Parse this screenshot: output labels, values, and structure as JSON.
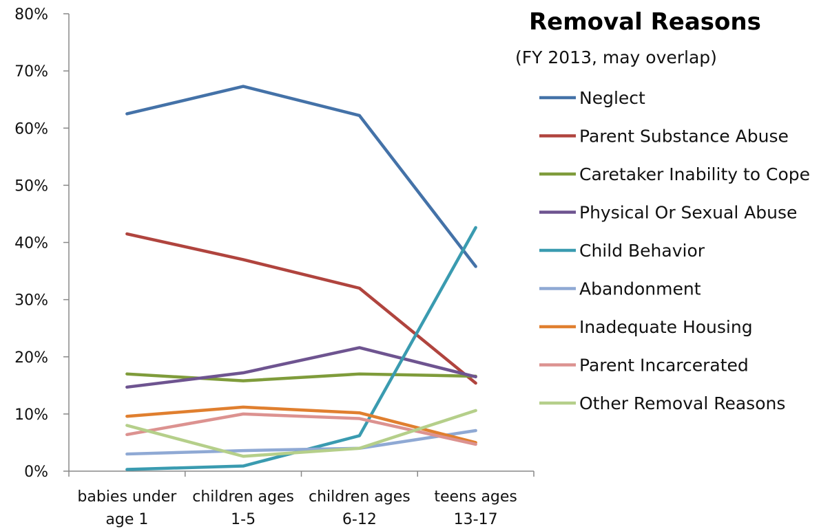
{
  "chart_data": {
    "type": "line",
    "title": "Removal Reasons",
    "subtitle": "(FY 2013, may overlap)",
    "xlabel": "",
    "ylabel": "",
    "ylim": [
      0,
      80
    ],
    "y_ticks": [
      "0%",
      "10%",
      "20%",
      "30%",
      "40%",
      "50%",
      "60%",
      "70%",
      "80%"
    ],
    "categories": [
      [
        "babies under",
        "age 1"
      ],
      [
        "children ages",
        "1-5"
      ],
      [
        "children ages",
        "6-12"
      ],
      [
        "teens ages",
        "13-17"
      ]
    ],
    "grid": false,
    "legend_position": "right",
    "series": [
      {
        "name": "Neglect",
        "color": "#4472a8",
        "values": [
          62.5,
          67.3,
          62.2,
          35.8
        ]
      },
      {
        "name": "Parent Substance Abuse",
        "color": "#b0443e",
        "values": [
          41.5,
          37.0,
          32.0,
          15.4
        ]
      },
      {
        "name": "Caretaker Inability to Cope",
        "color": "#7f9c3b",
        "values": [
          17.0,
          15.8,
          17.0,
          16.6
        ]
      },
      {
        "name": "Physical Or Sexual Abuse",
        "color": "#6e5490",
        "values": [
          14.7,
          17.2,
          21.6,
          16.5
        ]
      },
      {
        "name": "Child Behavior",
        "color": "#3a9bb0",
        "values": [
          0.3,
          0.9,
          6.2,
          42.6
        ]
      },
      {
        "name": "Abandonment",
        "color": "#8fa9d4",
        "values": [
          3.0,
          3.6,
          4.0,
          7.1
        ]
      },
      {
        "name": "Inadequate Housing",
        "color": "#e07f2f",
        "values": [
          9.6,
          11.2,
          10.2,
          5.0
        ]
      },
      {
        "name": "Parent Incarcerated",
        "color": "#dc9290",
        "values": [
          6.4,
          10.0,
          9.2,
          4.7
        ]
      },
      {
        "name": "Other Removal Reasons",
        "color": "#b5cf8a",
        "values": [
          8.0,
          2.6,
          4.0,
          10.6
        ]
      }
    ]
  }
}
